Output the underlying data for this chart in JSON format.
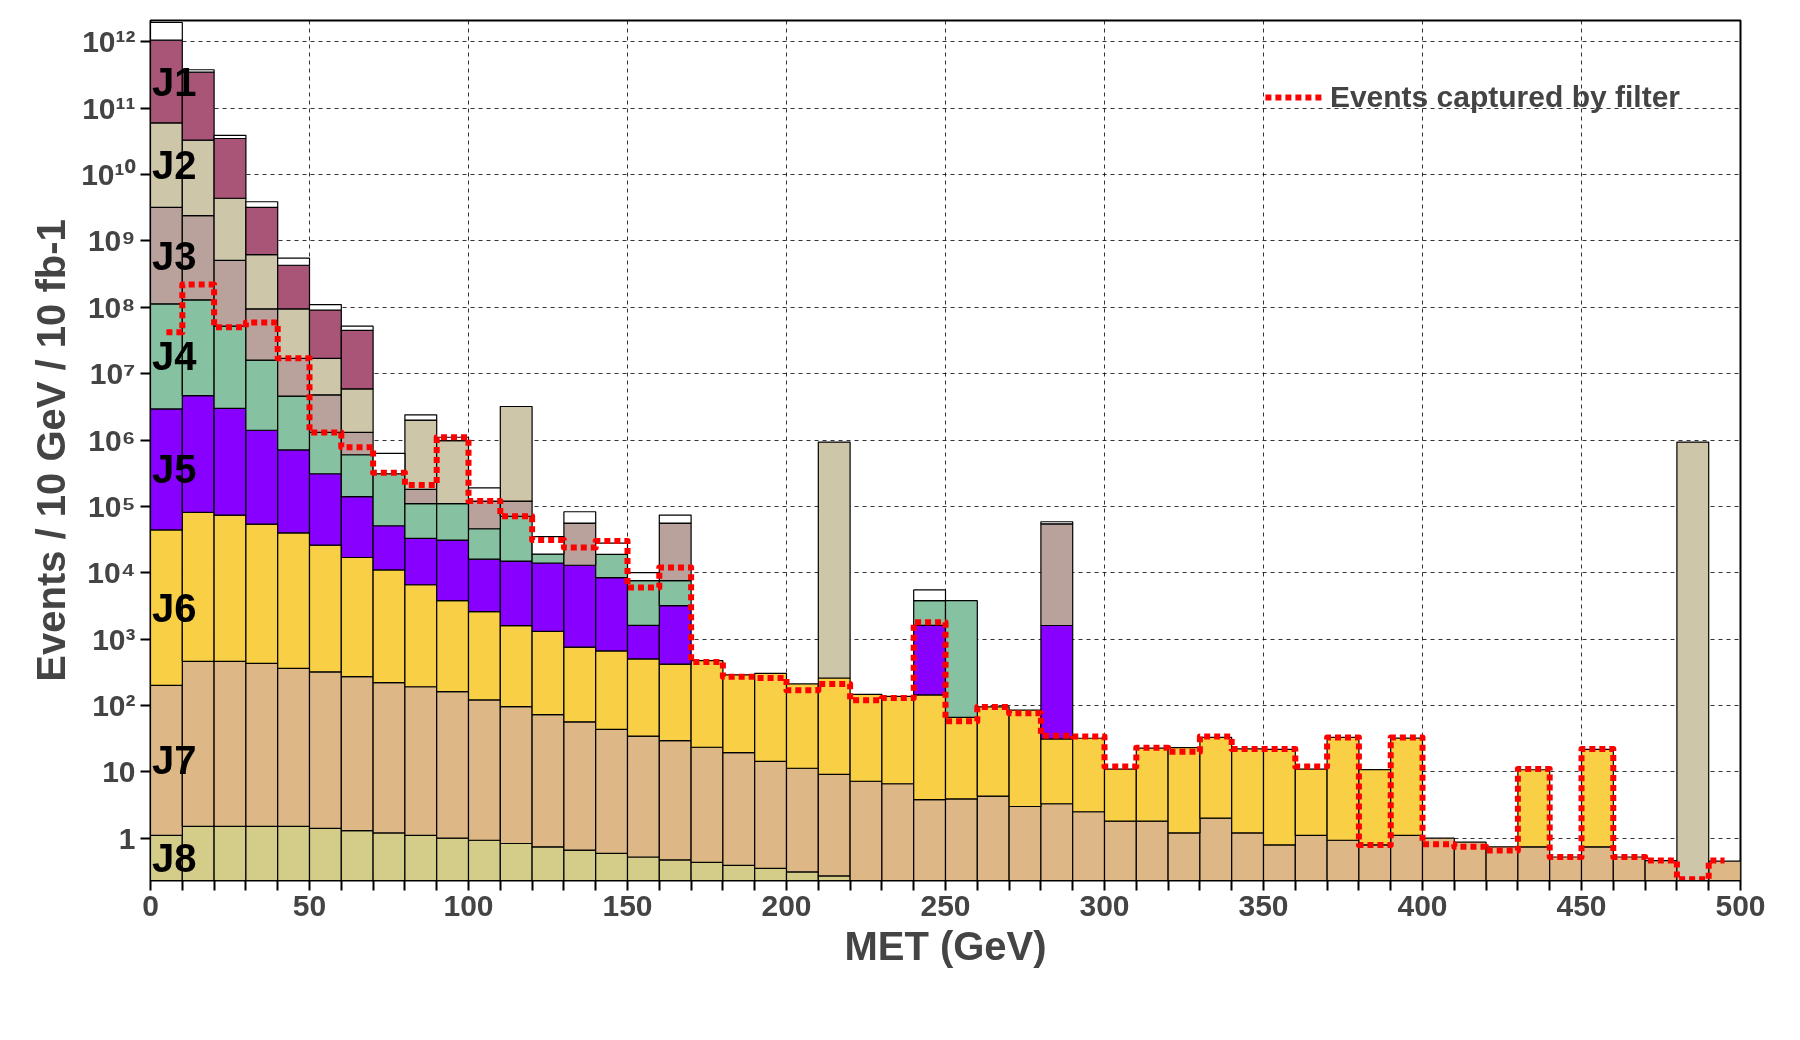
{
  "chart_data": {
    "type": "bar",
    "xlabel": "MET (GeV)",
    "ylabel": "Events / 10 GeV / 10 fb-1",
    "stacked": true,
    "x": [
      5,
      15,
      25,
      35,
      45,
      55,
      65,
      75,
      85,
      95,
      105,
      115,
      125,
      135,
      145,
      155,
      165,
      175,
      185,
      195,
      205,
      215,
      225,
      235,
      245,
      255,
      265,
      275,
      285,
      295,
      305,
      315,
      325,
      335,
      345,
      355,
      365,
      375,
      385,
      395,
      405,
      415,
      425,
      435,
      445,
      455,
      465,
      475,
      485,
      495
    ],
    "xlim": [
      0,
      500
    ],
    "ylim": [
      0.23,
      2100000000000.0
    ],
    "log": true,
    "grid": true,
    "legend": "top right",
    "xticks": [
      0,
      {
        "value": 10,
        "label": null
      },
      {
        "value": 20,
        "label": null
      },
      {
        "value": 30,
        "label": null
      },
      {
        "value": 40,
        "label": null
      },
      50,
      {
        "value": 60,
        "label": null
      },
      {
        "value": 70,
        "label": null
      },
      {
        "value": 80,
        "label": null
      },
      {
        "value": 90,
        "label": null
      },
      100,
      {
        "value": 110,
        "label": null
      },
      {
        "value": 120,
        "label": null
      },
      {
        "value": 130,
        "label": null
      },
      {
        "value": 140,
        "label": null
      },
      150,
      {
        "value": 160,
        "label": null
      },
      {
        "value": 170,
        "label": null
      },
      {
        "value": 180,
        "label": null
      },
      {
        "value": 190,
        "label": null
      },
      200,
      {
        "value": 210,
        "label": null
      },
      {
        "value": 220,
        "label": null
      },
      {
        "value": 230,
        "label": null
      },
      {
        "value": 240,
        "label": null
      },
      250,
      {
        "value": 260,
        "label": null
      },
      {
        "value": 270,
        "label": null
      },
      {
        "value": 280,
        "label": null
      },
      {
        "value": 290,
        "label": null
      },
      300,
      {
        "value": 310,
        "label": null
      },
      {
        "value": 320,
        "label": null
      },
      {
        "value": 330,
        "label": null
      },
      {
        "value": 340,
        "label": null
      },
      350,
      {
        "value": 360,
        "label": null
      },
      {
        "value": 370,
        "label": null
      },
      {
        "value": 380,
        "label": null
      },
      {
        "value": 390,
        "label": null
      },
      400,
      {
        "value": 410,
        "label": null
      },
      {
        "value": 420,
        "label": null
      },
      {
        "value": 430,
        "label": null
      },
      {
        "value": 440,
        "label": null
      },
      450,
      {
        "value": 460,
        "label": null
      },
      {
        "value": 470,
        "label": null
      },
      {
        "value": 480,
        "label": null
      },
      {
        "value": 490,
        "label": null
      },
      500
    ],
    "yticks": [
      1,
      10,
      {
        "value": 100,
        "label": "10²"
      },
      {
        "value": 1000,
        "label": "10³"
      },
      {
        "value": 10000.0,
        "label": "10⁴"
      },
      {
        "value": 100000.0,
        "label": "10⁵"
      },
      {
        "value": 1000000.0,
        "label": "10⁶"
      },
      {
        "value": 10000000.0,
        "label": "10⁷"
      },
      {
        "value": 100000000.0,
        "label": "10⁸"
      },
      {
        "value": 1000000000.0,
        "label": "10⁹"
      },
      {
        "value": 10000000000.0,
        "label": "10¹⁰"
      },
      {
        "value": 100000000000.0,
        "label": "10¹¹"
      },
      {
        "value": 1000000000000.0,
        "label": "10¹²"
      }
    ],
    "series": [
      {
        "name": "J8",
        "color": "#d4cd8a",
        "values": [
          1.1,
          1.5,
          1.5,
          1.5,
          1.5,
          1.4,
          1.3,
          1.2,
          1.1,
          1.0,
          0.93,
          0.83,
          0.74,
          0.66,
          0.59,
          0.52,
          0.47,
          0.43,
          0.39,
          0.35,
          0.31,
          0.27,
          null,
          null,
          null,
          null,
          null,
          null,
          null,
          null,
          null,
          null,
          null,
          null,
          null,
          null,
          null,
          null,
          null,
          null,
          null,
          null,
          null,
          null,
          null,
          null,
          null,
          null,
          null,
          null
        ]
      },
      {
        "name": "J7",
        "color": "#ddb886",
        "values": [
          200,
          460,
          460,
          430,
          360,
          320,
          270,
          220,
          190,
          160,
          120,
          95,
          72,
          56,
          43,
          34,
          29,
          23,
          19,
          14,
          11,
          8.9,
          7.2,
          6.6,
          3.8,
          3.9,
          4.3,
          3.0,
          3.3,
          2.5,
          1.8,
          1.8,
          1.2,
          2.0,
          1.2,
          0.79,
          1.1,
          0.93,
          0.79,
          1.1,
          1.0,
          0.87,
          0.74,
          0.74,
          0.52,
          0.74,
          0.52,
          0.46,
          null,
          0.45
        ]
      },
      {
        "name": "J6",
        "color": "#f8cf45",
        "values": [
          44000.0,
          81000.0,
          73500.0,
          53600.0,
          39600.0,
          25700.0,
          16700.0,
          10800.0,
          6400.0,
          3640.0,
          2480.0,
          1500.0,
          1230.0,
          700,
          620,
          470,
          390,
          450,
          270,
          290,
          200,
          250,
          140,
          130,
          140,
          62,
          91,
          82,
          28,
          29.5,
          9.2,
          21,
          22,
          31,
          21,
          21,
          9.9,
          32,
          10,
          31,
          null,
          null,
          null,
          10,
          null,
          21,
          null,
          null,
          null,
          null
        ]
      },
      {
        "name": "J5",
        "color": "#8800ff",
        "values": [
          2900000.0,
          4600000.0,
          2930000.0,
          1350000.0,
          670000.0,
          284000.0,
          123000.0,
          40000.0,
          26400.0,
          27200.0,
          13400.0,
          13400.0,
          12700.0,
          12200.0,
          7800.0,
          1100.0,
          2780.0,
          null,
          null,
          null,
          null,
          null,
          null,
          null,
          1460.0,
          null,
          null,
          null,
          1570.0,
          null,
          null,
          null,
          null,
          null,
          null,
          null,
          null,
          null,
          null,
          null,
          null,
          null,
          null,
          null,
          null,
          null,
          null,
          null,
          null,
          null
        ]
      },
      {
        "name": "J4",
        "color": "#86c2a2",
        "values": [
          110000000.0,
          125000000.0,
          49000000.0,
          14600000.0,
          3890000.0,
          990000.0,
          460000.0,
          259000.0,
          77000.0,
          79000.0,
          30000.0,
          56000.0,
          5000.0,
          null,
          10500.0,
          6000.0,
          4400.0,
          null,
          null,
          null,
          null,
          null,
          null,
          null,
          2200.0,
          3730.0,
          null,
          null,
          null,
          null,
          null,
          null,
          null,
          null,
          null,
          null,
          null,
          null,
          null,
          null,
          null,
          null,
          null,
          null,
          null,
          null,
          null,
          null,
          null,
          null
        ]
      },
      {
        "name": "J3",
        "color": "#b8a29b",
        "values": [
          3100000000.0,
          2270000000.0,
          458000000.0,
          79000000.0,
          12400000.0,
          3500000.0,
          700000.0,
          null,
          70000.0,
          null,
          74000.0,
          49000.0,
          null,
          43000.0,
          null,
          null,
          48400.0,
          null,
          null,
          null,
          null,
          null,
          null,
          null,
          null,
          null,
          null,
          null,
          53000.0,
          null,
          null,
          null,
          null,
          null,
          null,
          null,
          null,
          null,
          null,
          null,
          null,
          null,
          null,
          null,
          null,
          null,
          null,
          null,
          null,
          null
        ]
      },
      {
        "name": "J2",
        "color": "#cdc6a8",
        "values": [
          57000000000.0,
          30600000000.0,
          3890000000.0,
          525000000.0,
          78000000.0,
          12200000.0,
          4600000.0,
          null,
          1820000.0,
          870000.0,
          null,
          3080000.0,
          null,
          null,
          null,
          null,
          null,
          null,
          null,
          null,
          null,
          930000.0,
          null,
          null,
          null,
          null,
          null,
          null,
          null,
          null,
          null,
          null,
          null,
          null,
          null,
          null,
          null,
          null,
          null,
          null,
          null,
          null,
          null,
          null,
          null,
          null,
          null,
          null,
          930000.0,
          null
        ]
      },
      {
        "name": "J1",
        "color": "#a85577",
        "values": [
          1000000000000.0,
          317000000000.0,
          30600000000.0,
          2580000000.0,
          335000000.0,
          74000000.0,
          39100000.0,
          null,
          null,
          null,
          null,
          null,
          null,
          null,
          null,
          null,
          null,
          null,
          null,
          null,
          null,
          null,
          null,
          null,
          null,
          null,
          null,
          null,
          null,
          null,
          null,
          null,
          null,
          null,
          null,
          null,
          null,
          null,
          null,
          null,
          null,
          null,
          null,
          null,
          null,
          null,
          null,
          null,
          null,
          null
        ]
      },
      {
        "color": "#ffffff",
        "values": [
          900000000000.0,
          30000000000.0,
          4000000000.0,
          700000000.0,
          120000000.0,
          19000000.0,
          7000000.0,
          320000.0,
          400000.0,
          120000.0,
          70000.0,
          null,
          16000.0,
          27000.0,
          9000.0,
          2400.0,
          18000.0,
          null,
          null,
          null,
          null,
          null,
          null,
          null,
          1700.0,
          null,
          null,
          null,
          4000.0,
          null,
          null,
          null,
          null,
          null,
          null,
          null,
          null,
          null,
          null,
          null,
          null,
          null,
          null,
          null,
          null,
          null,
          null,
          null,
          null,
          null
        ]
      },
      {
        "name": "Events captured by filter",
        "type": "step",
        "color": "#ff0000",
        "line_style": "dashed",
        "values": [
          42000000.0,
          220000000.0,
          50000000.0,
          59000000.0,
          17000000.0,
          1300000.0,
          780000.0,
          320000.0,
          210000.0,
          1100000.0,
          120000.0,
          71000.0,
          31000.0,
          24000.0,
          30000.0,
          6000.0,
          12000.0,
          450,
          270,
          260,
          170,
          210,
          120,
          130,
          1800.0,
          58,
          95,
          76,
          35,
          34,
          12,
          23,
          20,
          34,
          22,
          22,
          12,
          33,
          0.79,
          33,
          0.81,
          0.74,
          0.65,
          11,
          0.52,
          22,
          0.52,
          0.46,
          0.24,
          0.46
        ]
      }
    ]
  }
}
